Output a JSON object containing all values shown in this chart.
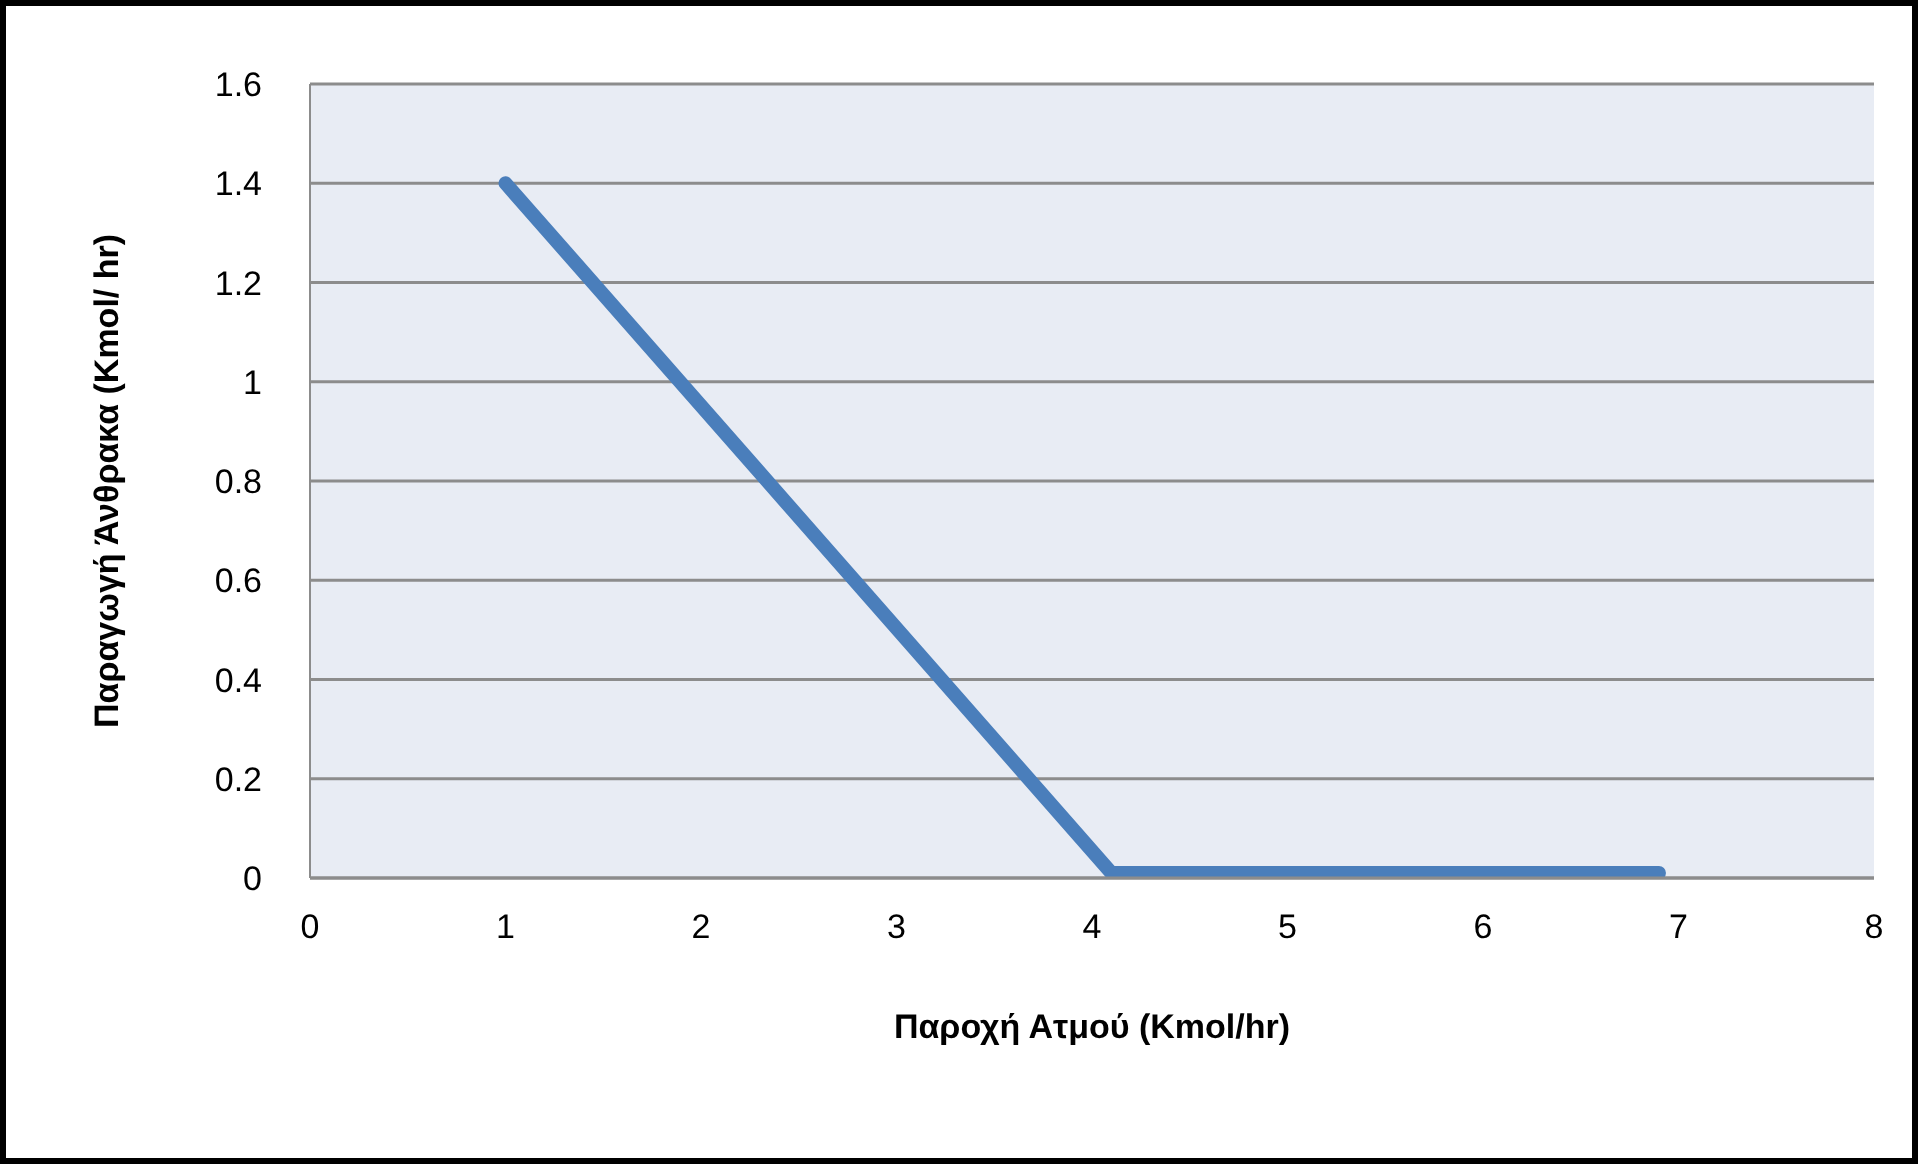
{
  "chart_data": {
    "type": "line",
    "xlabel": "Παροχή Ατμού (Kmol/hr)",
    "ylabel": "Παραγωγή Άνθρακα (Kmol/ hr)",
    "x": [
      1,
      4.1,
      6.9
    ],
    "series": [
      {
        "color": "#4a7ebb",
        "values": [
          1.4,
          0.01,
          0.01
        ]
      }
    ],
    "xlim": [
      0,
      8
    ],
    "xticks": [
      0,
      1,
      2,
      3,
      4,
      5,
      6,
      7,
      8
    ],
    "ylim": [
      0,
      1.6
    ],
    "yticks": [
      0,
      0.2,
      0.4,
      0.6,
      0.8,
      1,
      1.2,
      1.4,
      1.6
    ],
    "grid": "y",
    "marker": "none",
    "line_style": "solid"
  }
}
